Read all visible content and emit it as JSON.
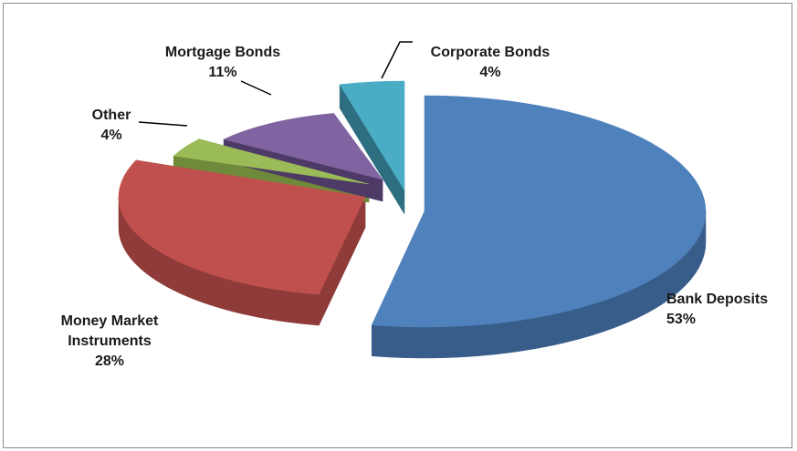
{
  "chart_data": {
    "type": "pie",
    "style": "3d-exploded",
    "title": "",
    "slices": [
      {
        "label": "Bank Deposits",
        "value": 53,
        "value_label": "53%",
        "color": "#4f81bd",
        "side": "#385d8a"
      },
      {
        "label_lines": [
          "Money Market",
          "Instruments"
        ],
        "label": "Money Market Instruments",
        "value": 28,
        "value_label": "28%",
        "color": "#c0504d",
        "side": "#8e3b39"
      },
      {
        "label": "Other",
        "value": 4,
        "value_label": "4%",
        "color": "#9bbb59",
        "side": "#6f8a3a"
      },
      {
        "label": "Mortgage Bonds",
        "value": 11,
        "value_label": "11%",
        "color": "#8064a2",
        "side": "#4e3a66"
      },
      {
        "label": "Corporate Bonds",
        "value": 4,
        "value_label": "4%",
        "color": "#4bacc6",
        "side": "#2d6e80"
      }
    ],
    "legend": "none"
  }
}
